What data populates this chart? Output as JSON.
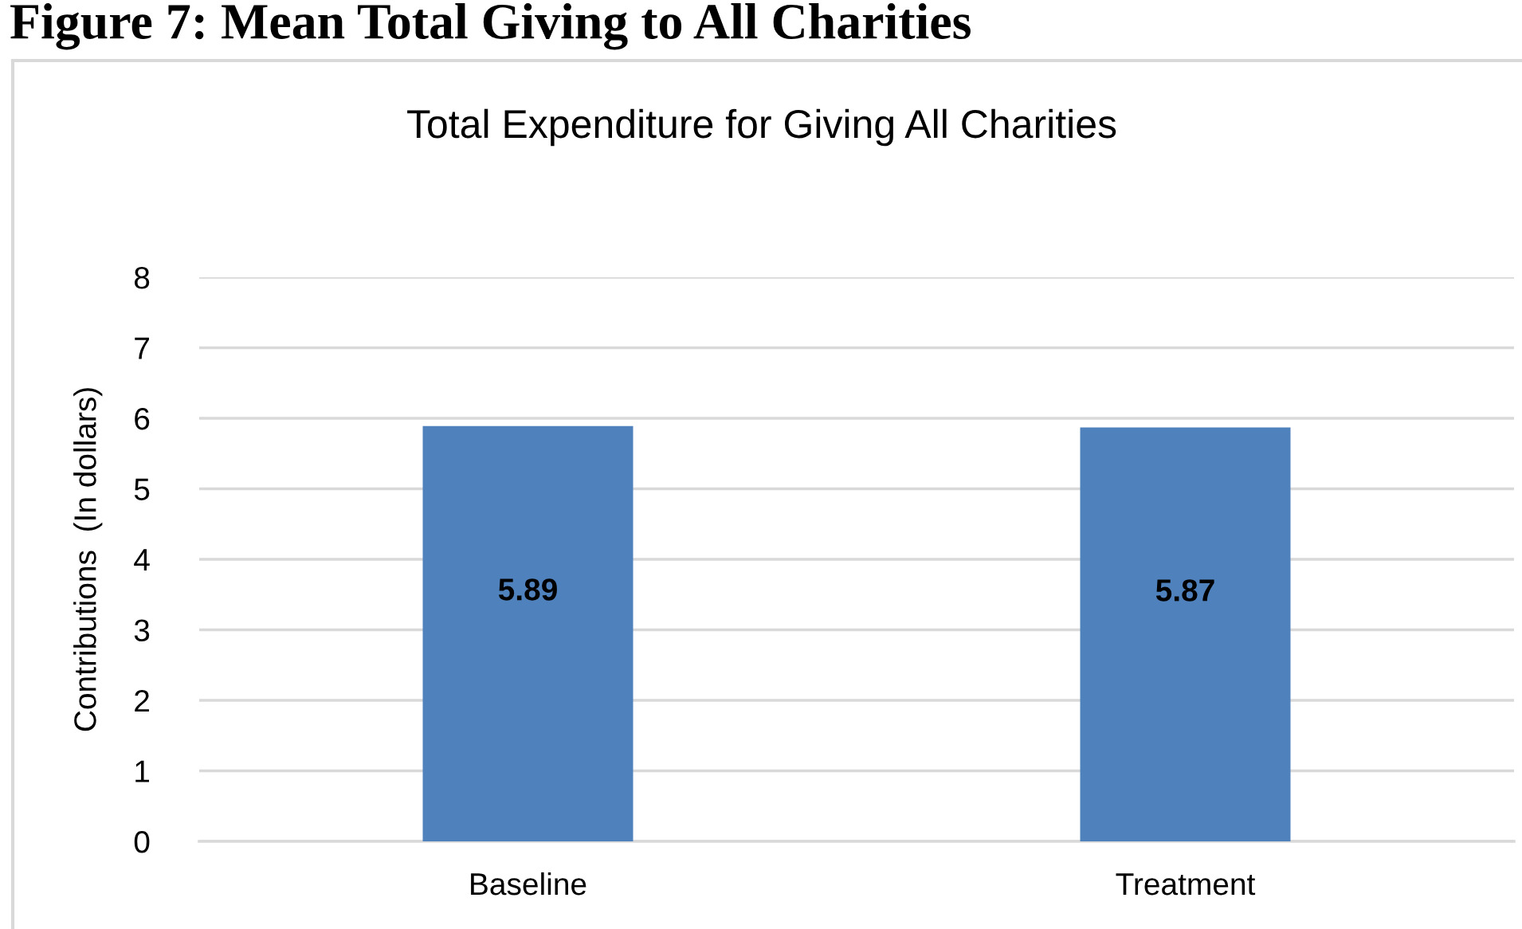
{
  "chart_data": {
    "type": "bar",
    "title": "Total Expenditure for Giving All Charities",
    "ylabel": "Contributions  (In dollars)",
    "categories": [
      "Baseline",
      "Treatment"
    ],
    "values": [
      5.89,
      5.87
    ],
    "color": "#4f81bd",
    "ylim": [
      0,
      8
    ],
    "yticks": [
      0,
      1,
      2,
      3,
      4,
      5,
      6,
      7,
      8
    ],
    "grid": "y",
    "data_labels": true,
    "annotations": [
      "Figure 7: Mean Total Giving to All Charities"
    ]
  }
}
